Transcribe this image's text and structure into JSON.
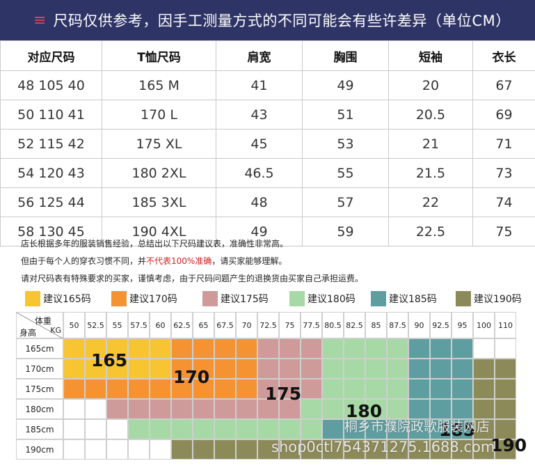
{
  "banner": {
    "mark": "≡",
    "text": "尺码仅供参考，因手工测量方式的不同可能会有些许差异（单位CM）"
  },
  "table": {
    "headers": [
      "对应尺码",
      "T恤尺码",
      "肩宽",
      "胸围",
      "短袖",
      "衣长"
    ],
    "rows": [
      [
        "48 105 40",
        "165 M",
        "41",
        "49",
        "20",
        "67"
      ],
      [
        "50 110 41",
        "170 L",
        "43",
        "51",
        "20.5",
        "69"
      ],
      [
        "52 115 42",
        "175 XL",
        "45",
        "53",
        "21",
        "71"
      ],
      [
        "54 120 43",
        "180 2XL",
        "46.5",
        "55",
        "21.5",
        "73"
      ],
      [
        "56 125 44",
        "185 3XL",
        "48",
        "57",
        "22",
        "74"
      ],
      [
        "58 130 45",
        "190 4XL",
        "49",
        "59",
        "22.5",
        "75"
      ]
    ]
  },
  "notes": {
    "line1": "店长根据多年的服装销售经验，总结出以下尺码建议表，准确性非常高。",
    "line2_pre": "但由于每个人的穿衣习惯不同，并",
    "line2_red": "不代表100%准确",
    "line2_post": "，请买家能够理解。",
    "line3": "请对尺码表有特殊要求的买家，谨慎考虑，由于尺码问题产生的退换货由买家自己承担运费。"
  },
  "legend": [
    {
      "label": "建议165码",
      "color": "#f7c531"
    },
    {
      "label": "建议170码",
      "color": "#f59232"
    },
    {
      "label": "建议175码",
      "color": "#cf9a9a"
    },
    {
      "label": "建议180码",
      "color": "#a6d9a6"
    },
    {
      "label": "建议185码",
      "color": "#5f9ea0"
    },
    {
      "label": "建议190码",
      "color": "#8d8a5a"
    }
  ],
  "grid": {
    "corner_weight": "体重",
    "corner_kg": "KG",
    "corner_height": "身高",
    "weights": [
      "50",
      "52.5",
      "55",
      "57.5",
      "60",
      "62.5",
      "65",
      "67.5",
      "70",
      "72.5",
      "75",
      "77.5",
      "80.5",
      "82.5",
      "85",
      "87.5",
      "90",
      "92.5",
      "95",
      "100",
      "110"
    ],
    "heights": [
      "165cm",
      "170cm",
      "175cm",
      "180cm",
      "185cm",
      "190cm"
    ],
    "colors": {
      "0": "#ffffff",
      "1": "#f7c531",
      "2": "#f59232",
      "3": "#cf9a9a",
      "4": "#a6d9a6",
      "5": "#5f9ea0",
      "6": "#8d8a5a"
    },
    "cells": [
      [
        1,
        1,
        1,
        1,
        1,
        2,
        2,
        2,
        2,
        3,
        3,
        3,
        4,
        4,
        4,
        4,
        5,
        5,
        5,
        0,
        0
      ],
      [
        1,
        1,
        1,
        1,
        1,
        2,
        2,
        2,
        2,
        3,
        3,
        3,
        4,
        4,
        4,
        4,
        5,
        5,
        5,
        6,
        6
      ],
      [
        2,
        2,
        2,
        2,
        2,
        2,
        2,
        2,
        2,
        3,
        3,
        3,
        4,
        4,
        4,
        4,
        5,
        5,
        5,
        6,
        6
      ],
      [
        0,
        0,
        3,
        3,
        3,
        3,
        3,
        3,
        3,
        3,
        3,
        4,
        4,
        4,
        4,
        4,
        5,
        5,
        5,
        6,
        6
      ],
      [
        0,
        0,
        0,
        4,
        4,
        4,
        4,
        4,
        4,
        4,
        4,
        4,
        5,
        5,
        5,
        5,
        5,
        5,
        5,
        6,
        6
      ],
      [
        0,
        0,
        0,
        0,
        0,
        6,
        6,
        6,
        6,
        6,
        6,
        6,
        6,
        6,
        6,
        6,
        6,
        6,
        6,
        6,
        6
      ]
    ],
    "size_labels": [
      "165",
      "170",
      "175",
      "180",
      "185",
      "190"
    ]
  },
  "watermark": {
    "line1": "桐乡市濮院政歌服装网店",
    "line2": "shop0ctl754371275.1688.com"
  }
}
